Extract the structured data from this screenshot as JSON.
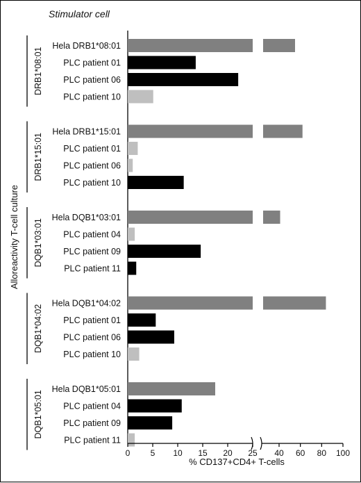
{
  "chart_data": {
    "type": "bar",
    "orientation": "horizontal",
    "title": "Stimulator cell",
    "ylabel": "Alloreactivity T-cell culture",
    "xlabel": "% CD137+CD4+ T-cells",
    "axis_break": true,
    "left_axis": {
      "range": [
        0,
        25
      ],
      "ticks": [
        0,
        5,
        10,
        15,
        20,
        25
      ]
    },
    "right_axis": {
      "range": [
        25,
        100
      ],
      "ticks": [
        40,
        60,
        80,
        100
      ]
    },
    "colors": {
      "hela": "#808080",
      "high": "#000000",
      "low": "#bfbfbf"
    },
    "groups": [
      {
        "name": "DRB1*08:01",
        "bars": [
          {
            "label": "Hela DRB1*08:01",
            "value": 55,
            "color": "hela"
          },
          {
            "label": "PLC patient 01",
            "value": 13.6,
            "color": "high"
          },
          {
            "label": "PLC patient 06",
            "value": 22.1,
            "color": "high"
          },
          {
            "label": "PLC patient 10",
            "value": 5.1,
            "color": "low"
          }
        ]
      },
      {
        "name": "DRB1*15:01",
        "bars": [
          {
            "label": "Hela DRB1*15:01",
            "value": 62,
            "color": "hela"
          },
          {
            "label": "PLC patient 01",
            "value": 2.0,
            "color": "low"
          },
          {
            "label": "PLC patient 06",
            "value": 1.0,
            "color": "low"
          },
          {
            "label": "PLC patient 10",
            "value": 11.2,
            "color": "high"
          }
        ]
      },
      {
        "name": "DQB1*03:01",
        "bars": [
          {
            "label": "Hela DQB1*03:01",
            "value": 41,
            "color": "hela"
          },
          {
            "label": "PLC patient 04",
            "value": 1.4,
            "color": "low"
          },
          {
            "label": "PLC patient 09",
            "value": 14.6,
            "color": "high"
          },
          {
            "label": "PLC patient 11",
            "value": 1.7,
            "color": "high"
          }
        ]
      },
      {
        "name": "DQB1*04:02",
        "bars": [
          {
            "label": "Hela DQB1*04:02",
            "value": 84,
            "color": "hela"
          },
          {
            "label": "PLC patient 01",
            "value": 5.6,
            "color": "high"
          },
          {
            "label": "PLC patient 06",
            "value": 9.3,
            "color": "high"
          },
          {
            "label": "PLC patient 10",
            "value": 2.3,
            "color": "low"
          }
        ]
      },
      {
        "name": "DQB1*05:01",
        "bars": [
          {
            "label": "Hela DQB1*05:01",
            "value": 17.5,
            "color": "hela"
          },
          {
            "label": "PLC patient 04",
            "value": 10.8,
            "color": "high"
          },
          {
            "label": "PLC patient 09",
            "value": 8.9,
            "color": "high"
          },
          {
            "label": "PLC patient 11",
            "value": 1.4,
            "color": "low"
          }
        ]
      }
    ]
  }
}
